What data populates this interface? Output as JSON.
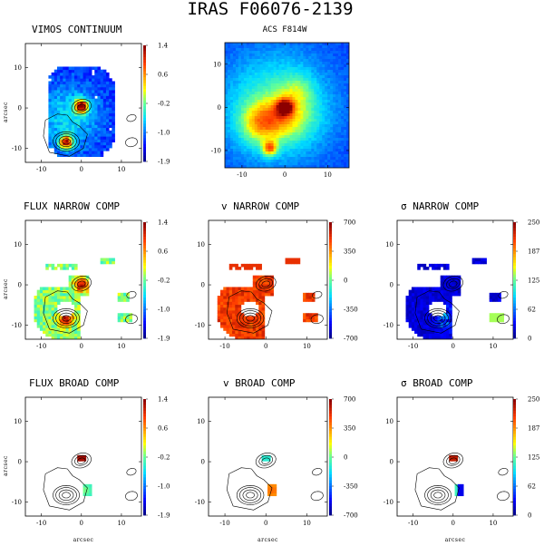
{
  "title": "IRAS F06076-2139",
  "colors": {
    "frame": "#000000",
    "contour": "#000000",
    "nan": "#ffffff"
  },
  "chart_data": [
    {
      "type": "heatmap",
      "id": "p1",
      "title": "VIMOS CONTINUUM",
      "xlabel": "",
      "ylabel": "arcsec",
      "xlim": [
        -14,
        15
      ],
      "ylim": [
        -13.5,
        16
      ],
      "xticks": [
        -10,
        0,
        10
      ],
      "yticks": [
        -10,
        0,
        10
      ],
      "colorbar": {
        "ticks": [
          "1.4",
          "0.6",
          "-0.2",
          "-1.0",
          "-1.9"
        ],
        "range": [
          -1.9,
          1.4
        ]
      },
      "map": "continuum",
      "contours": true
    },
    {
      "type": "heatmap",
      "id": "p2",
      "title": "ACS F814W",
      "xlabel": "",
      "ylabel": "",
      "xlim": [
        -14,
        15
      ],
      "ylim": [
        -14,
        15
      ],
      "xticks": [
        -10,
        0,
        10
      ],
      "yticks": [
        -10,
        0,
        10
      ],
      "map": "acs",
      "contours": false
    },
    {
      "type": "heatmap",
      "id": "p3",
      "title": "FLUX NARROW COMP",
      "xlabel": "",
      "ylabel": "arcsec",
      "xlim": [
        -14,
        15
      ],
      "ylim": [
        -13.5,
        16
      ],
      "xticks": [
        -10,
        0,
        10
      ],
      "yticks": [
        -10,
        0,
        10
      ],
      "colorbar": {
        "ticks": [
          "1.4",
          "0.6",
          "-0.2",
          "-1.0",
          "-1.9"
        ],
        "range": [
          -1.9,
          1.4
        ]
      },
      "map": "flux_narrow",
      "contours": true
    },
    {
      "type": "heatmap",
      "id": "p4",
      "title": "v NARROW COMP",
      "xlabel": "",
      "ylabel": "",
      "xlim": [
        -14,
        15
      ],
      "ylim": [
        -13.5,
        16
      ],
      "xticks": [
        -10,
        0,
        10
      ],
      "yticks": [
        -10,
        0,
        10
      ],
      "colorbar": {
        "ticks": [
          "700",
          "350",
          "0",
          "-350",
          "-700"
        ],
        "range": [
          -700,
          700
        ]
      },
      "map": "v_narrow",
      "contours": true
    },
    {
      "type": "heatmap",
      "id": "p5",
      "title": "σ NARROW COMP",
      "xlabel": "",
      "ylabel": "",
      "xlim": [
        -14,
        15
      ],
      "ylim": [
        -13.5,
        16
      ],
      "xticks": [
        -10,
        0,
        10
      ],
      "yticks": [
        -10,
        0,
        10
      ],
      "colorbar": {
        "ticks": [
          "250",
          "187",
          "125",
          "62",
          "0"
        ],
        "range": [
          0,
          250
        ]
      },
      "map": "sigma_narrow",
      "contours": true
    },
    {
      "type": "heatmap",
      "id": "p6",
      "title": "FLUX BROAD COMP",
      "xlabel": "arcsec",
      "ylabel": "arcsec",
      "xlim": [
        -14,
        15
      ],
      "ylim": [
        -13.5,
        16
      ],
      "xticks": [
        -10,
        0,
        10
      ],
      "yticks": [
        -10,
        0,
        10
      ],
      "colorbar": {
        "ticks": [
          "1.4",
          "0.6",
          "-0.2",
          "-1.0",
          "-1.9"
        ],
        "range": [
          -1.9,
          1.4
        ]
      },
      "map": "flux_broad",
      "contours": true
    },
    {
      "type": "heatmap",
      "id": "p7",
      "title": "v BROAD COMP",
      "xlabel": "arcsec",
      "ylabel": "",
      "xlim": [
        -14,
        15
      ],
      "ylim": [
        -13.5,
        16
      ],
      "xticks": [
        -10,
        0,
        10
      ],
      "yticks": [
        -10,
        0,
        10
      ],
      "colorbar": {
        "ticks": [
          "700",
          "350",
          "0",
          "-350",
          "-700"
        ],
        "range": [
          -700,
          700
        ]
      },
      "map": "v_broad",
      "contours": true
    },
    {
      "type": "heatmap",
      "id": "p8",
      "title": "σ BROAD COMP",
      "xlabel": "arcsec",
      "ylabel": "",
      "xlim": [
        -14,
        15
      ],
      "ylim": [
        -13.5,
        16
      ],
      "xticks": [
        -10,
        0,
        10
      ],
      "yticks": [
        -10,
        0,
        10
      ],
      "colorbar": {
        "ticks": [
          "250",
          "187",
          "125",
          "62",
          "0"
        ],
        "range": [
          0,
          250
        ]
      },
      "map": "sigma_broad",
      "contours": true
    }
  ]
}
